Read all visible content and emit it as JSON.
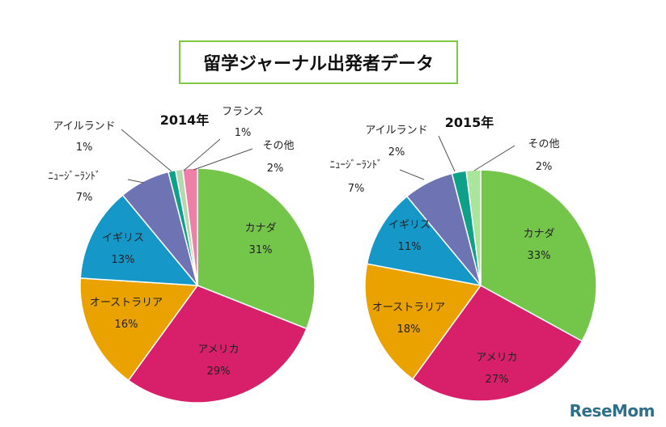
{
  "title": "留学ジャーナル出発者データ",
  "logo": "ReseMom",
  "colors": {
    "カナダ": "#74c64a",
    "アメリカ": "#d8206a",
    "オーストラリア": "#e9a200",
    "イギリス": "#1597c8",
    "ニュージーランド": "#6e73b4",
    "アイルランド": "#0fa08a",
    "フランス": "#b6d8b0",
    "その他": "#ee7fa6",
    "その他_2015": "#a9e59b"
  },
  "chart_data": [
    {
      "type": "pie",
      "title": "2014年",
      "slices": [
        {
          "label": "カナダ",
          "display": "カナダ",
          "value": 31,
          "text": "31%"
        },
        {
          "label": "アメリカ",
          "display": "アメリカ",
          "value": 29,
          "text": "29%"
        },
        {
          "label": "オーストラリア",
          "display": "オーストラリア",
          "value": 16,
          "text": "16%"
        },
        {
          "label": "イギリス",
          "display": "イギリス",
          "value": 13,
          "text": "13%"
        },
        {
          "label": "ニュージーランド",
          "display": "ﾆｭｰｼﾞｰﾗﾝﾄﾞ",
          "value": 7,
          "text": "7%"
        },
        {
          "label": "アイルランド",
          "display": "アイルランド",
          "value": 1,
          "text": "1%"
        },
        {
          "label": "フランス",
          "display": "フランス",
          "value": 1,
          "text": "1%"
        },
        {
          "label": "その他",
          "display": "その他",
          "value": 2,
          "text": "2%"
        }
      ]
    },
    {
      "type": "pie",
      "title": "2015年",
      "slices": [
        {
          "label": "カナダ",
          "display": "カナダ",
          "value": 33,
          "text": "33%"
        },
        {
          "label": "アメリカ",
          "display": "アメリカ",
          "value": 27,
          "text": "27%"
        },
        {
          "label": "オーストラリア",
          "display": "オーストラリア",
          "value": 18,
          "text": "18%"
        },
        {
          "label": "イギリス",
          "display": "イギリス",
          "value": 11,
          "text": "11%"
        },
        {
          "label": "ニュージーランド",
          "display": "ﾆｭｰｼﾞｰﾗﾝﾄﾞ",
          "value": 7,
          "text": "7%"
        },
        {
          "label": "アイルランド",
          "display": "アイルランド",
          "value": 2,
          "text": "2%"
        },
        {
          "label": "その他",
          "display": "その他",
          "value": 2,
          "text": "2%"
        }
      ]
    }
  ]
}
